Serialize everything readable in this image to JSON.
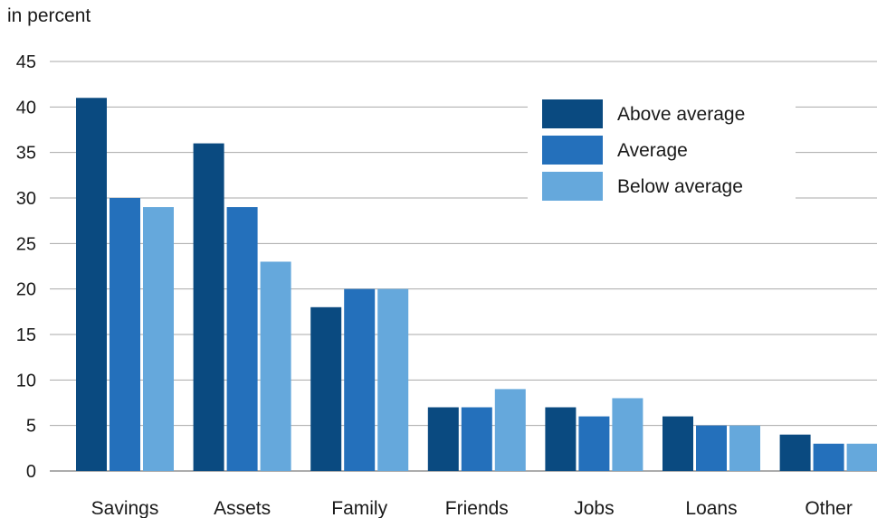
{
  "chart_data": {
    "type": "bar",
    "title": "",
    "unit_label": "in percent",
    "xlabel": "",
    "ylabel": "",
    "ylim": [
      0,
      45
    ],
    "yticks": [
      0,
      5,
      10,
      15,
      20,
      25,
      30,
      35,
      40,
      45
    ],
    "grid": true,
    "legend_position": "top-right",
    "categories": [
      "Savings",
      "Assets",
      "Family",
      "Friends",
      "Jobs",
      "Loans",
      "Other"
    ],
    "series": [
      {
        "name": "Above average",
        "color": "#0a4a80",
        "values": [
          41,
          36,
          18,
          7,
          7,
          6,
          4
        ]
      },
      {
        "name": "Average",
        "color": "#2470bb",
        "values": [
          30,
          29,
          20,
          7,
          6,
          5,
          3
        ]
      },
      {
        "name": "Below average",
        "color": "#65a8dc",
        "values": [
          29,
          23,
          20,
          9,
          8,
          5,
          3
        ]
      }
    ]
  }
}
